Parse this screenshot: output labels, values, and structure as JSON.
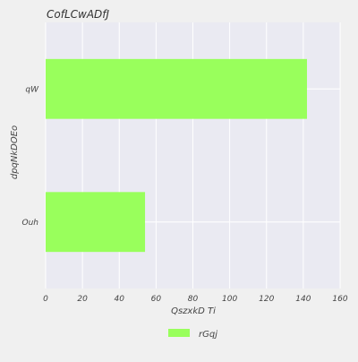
{
  "chart_data": {
    "type": "bar",
    "orientation": "horizontal",
    "title": "CofLCwADfJ",
    "xlabel": "QszxkD  Ti",
    "ylabel": "dpqNkDOEo",
    "categories": [
      "qW",
      "Ouh"
    ],
    "series": [
      {
        "name": "rGqj",
        "values": [
          142,
          54
        ],
        "color": "#99ff5c"
      }
    ],
    "xlim": [
      0,
      160
    ],
    "xticks": [
      "0",
      "20",
      "40",
      "60",
      "80",
      "100",
      "120",
      "140",
      "160"
    ],
    "grid": true,
    "legend_position": "bottom-center",
    "background_color": "#eaeaf2",
    "page_color": "#f0f0f0"
  }
}
